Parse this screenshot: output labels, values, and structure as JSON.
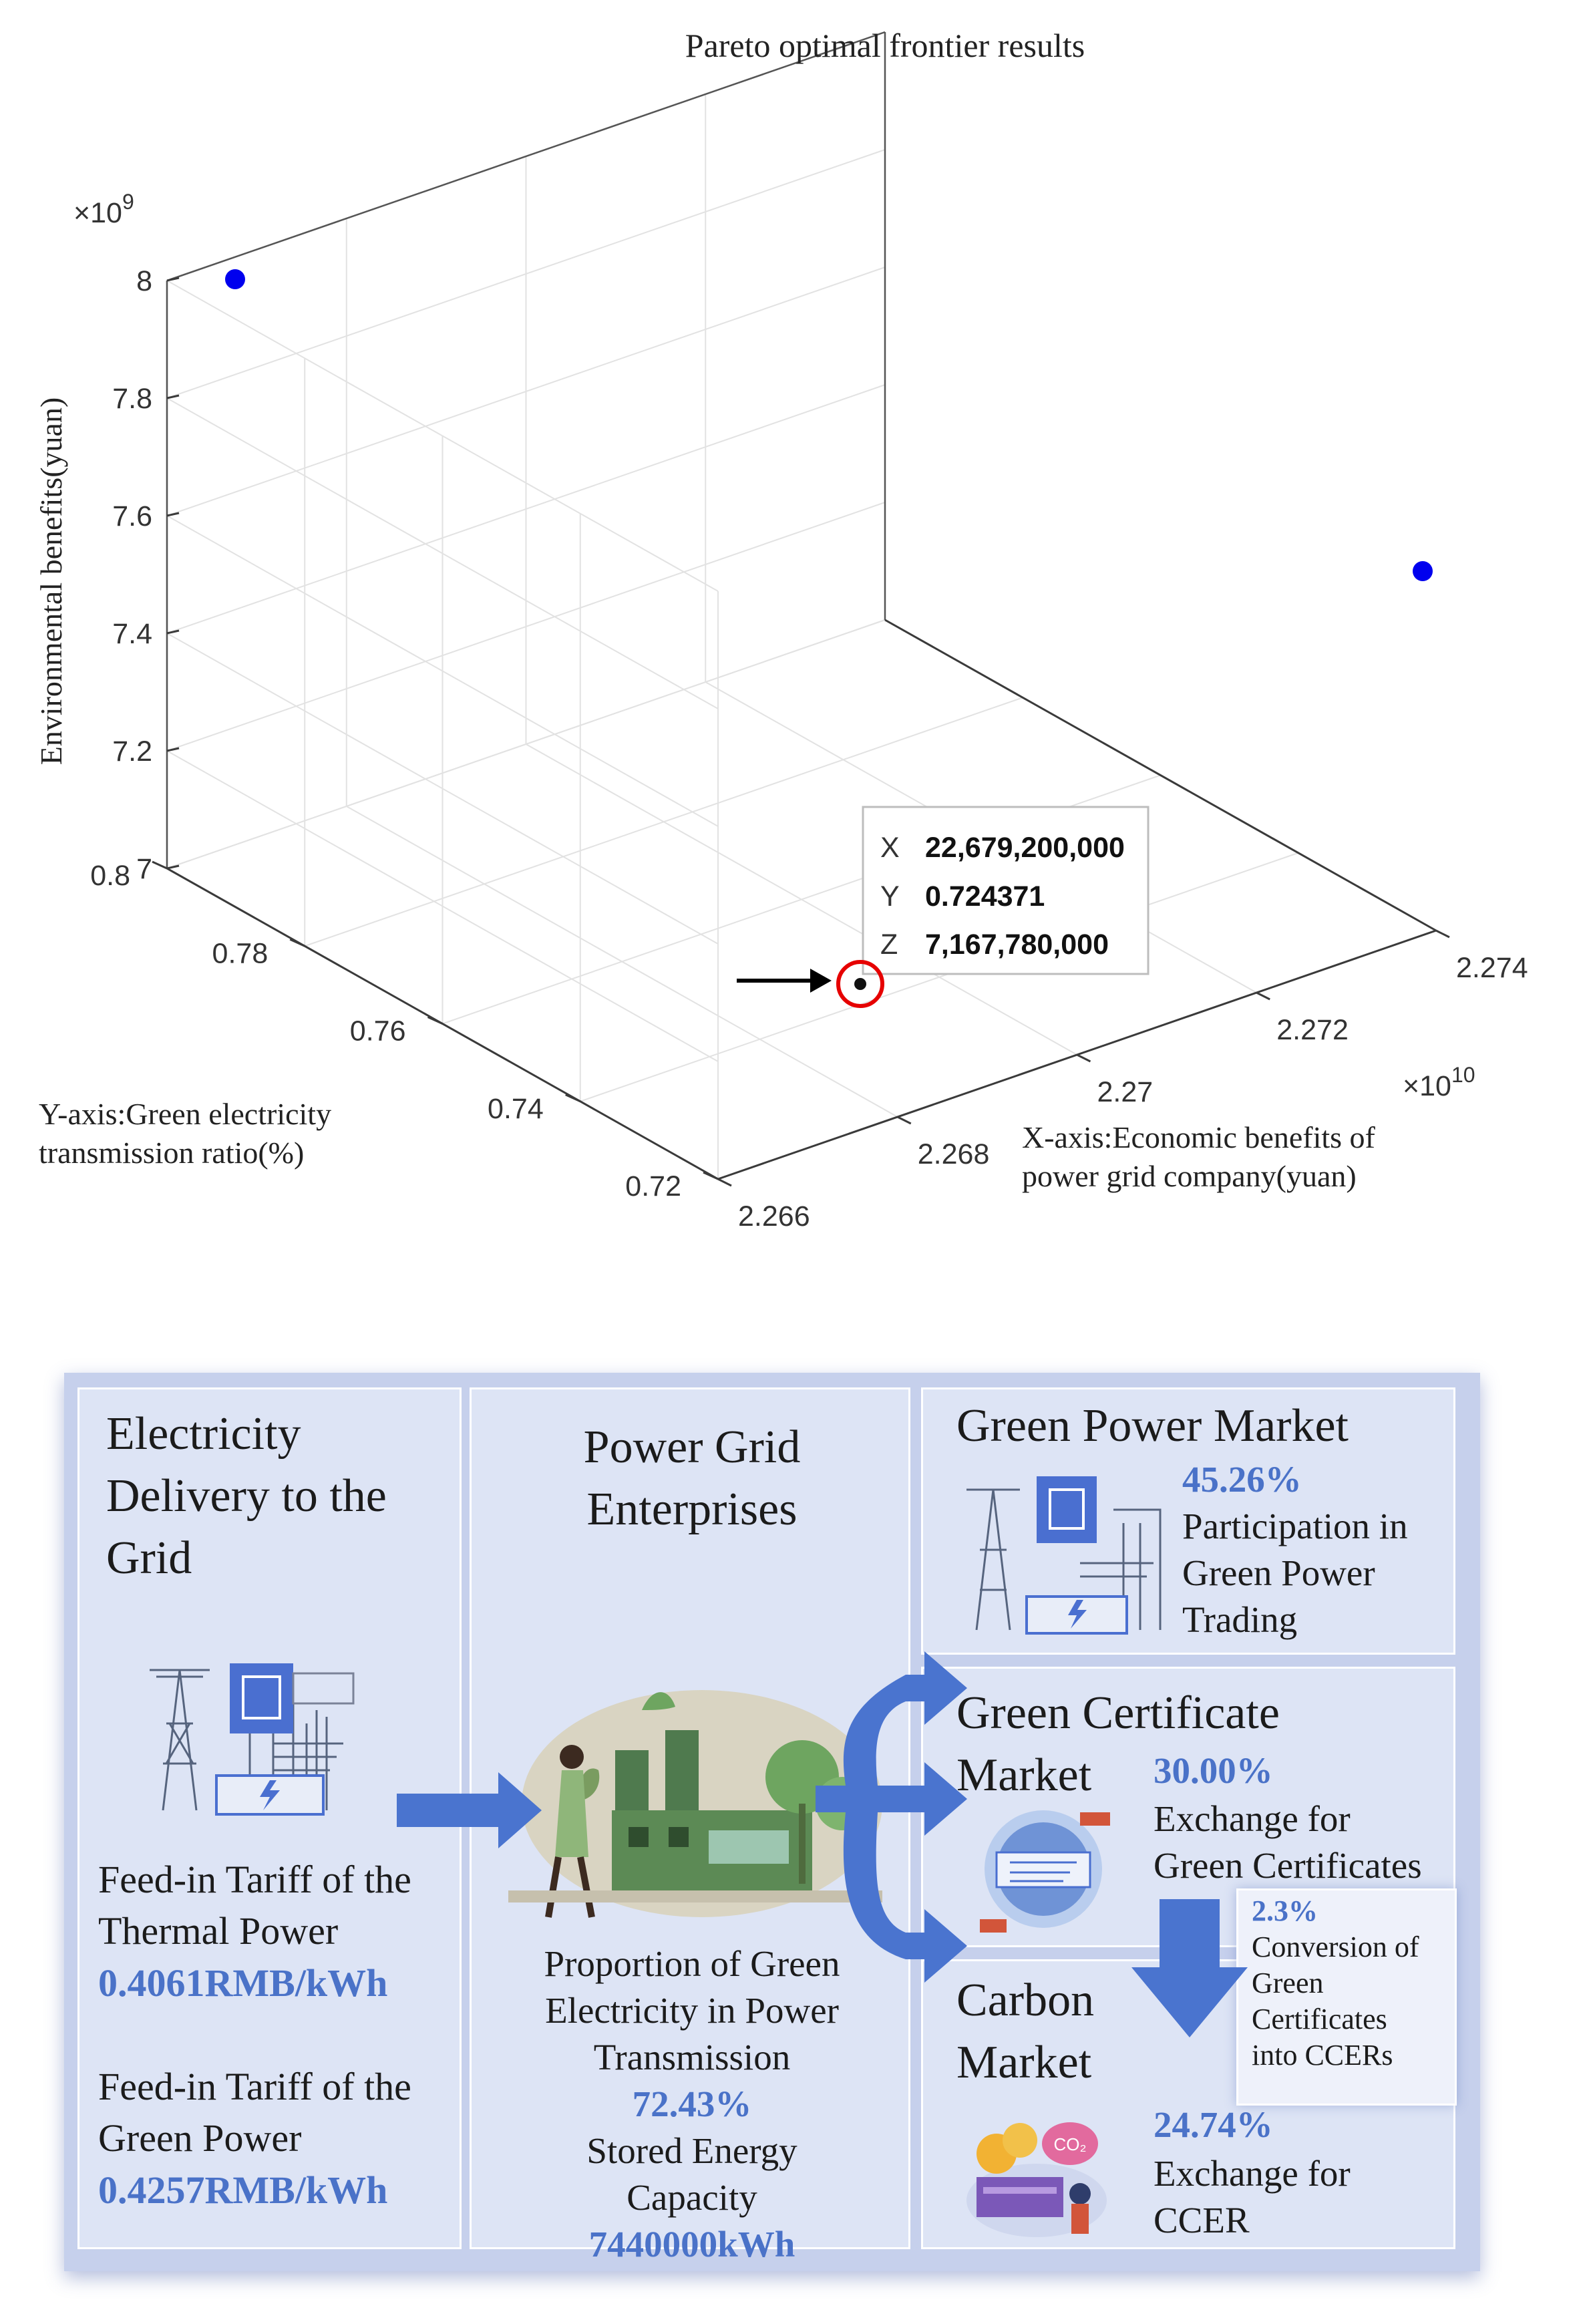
{
  "chart_data": {
    "type": "scatter",
    "title": "Pareto optimal frontier results",
    "xlabel": [
      "X-axis:Economic benefits of",
      "power grid company(yuan)"
    ],
    "ylabel": [
      "Y-axis:Green electricity",
      "transmission ratio(%)"
    ],
    "zlabel": "Environmental benefits(yuan)",
    "x_ticks": [
      "2.266",
      "2.268",
      "2.27",
      "2.272",
      "2.274"
    ],
    "x_exponent": "×10",
    "x_exponent_power": "10",
    "y_ticks": [
      "0.72",
      "0.74",
      "0.76",
      "0.78",
      "0.8"
    ],
    "z_ticks": [
      "7",
      "7.2",
      "7.4",
      "7.6",
      "7.8",
      "8"
    ],
    "z_exponent": "×10",
    "z_exponent_power": "9",
    "xlim": [
      22660000000,
      22740000000
    ],
    "ylim": [
      0.72,
      0.8
    ],
    "zlim": [
      7000000000,
      8000000000
    ],
    "grid": true,
    "points": [
      {
        "x": 22735000000,
        "y": 0.8,
        "z": 7998000000,
        "color": "#0000ee"
      },
      {
        "x": 22740000000,
        "y": 0.78,
        "z": 7470000000,
        "color": "#0000ee"
      },
      {
        "x": 22679200000,
        "y": 0.724371,
        "z": 7167780000,
        "color": "#111111",
        "highlighted": true
      }
    ],
    "datatip": [
      {
        "key": "X",
        "value": "22,679,200,000"
      },
      {
        "key": "Y",
        "value": "0.724371"
      },
      {
        "key": "Z",
        "value": "7,167,780,000"
      }
    ]
  },
  "diagram": {
    "delivery": {
      "title": [
        "Electricity",
        "Delivery to the",
        "Grid"
      ],
      "thermal_label": [
        "Feed-in Tariff of the",
        "Thermal Power"
      ],
      "thermal_value": "0.4061RMB/kWh",
      "green_label": [
        "Feed-in Tariff of the",
        "Green Power"
      ],
      "green_value": "0.4257RMB/kWh"
    },
    "enterprises": {
      "title": [
        "Power Grid",
        "Enterprises"
      ],
      "proportion_label": [
        "Proportion of Green",
        "Electricity in Power",
        "Transmission"
      ],
      "proportion_value": "72.43%",
      "storage_label": [
        "Stored Energy",
        "Capacity"
      ],
      "storage_value": "7440000kWh"
    },
    "green_power": {
      "title": "Green Power Market",
      "value": "45.26%",
      "desc": [
        "Participation in",
        "Green Power",
        "Trading"
      ]
    },
    "green_certificate": {
      "title": [
        "Green Certificate",
        "Market"
      ],
      "value": "30.00%",
      "desc": [
        "Exchange for",
        "Green Certificates"
      ]
    },
    "conversion": {
      "value": "2.3%",
      "desc": [
        "Conversion of",
        "Green",
        "Certificates",
        "into CCERs"
      ]
    },
    "carbon": {
      "title": [
        "Carbon",
        "Market"
      ],
      "value": "24.74%",
      "desc": [
        "Exchange for",
        "CCER"
      ]
    },
    "colors": {
      "accent": "#4a72c8",
      "arrow": "#4a74cf",
      "panel": "#c6d0ec",
      "box": "#dde4f5"
    },
    "icons": [
      "power-plant-icon",
      "factory-icon",
      "globe-certificate-icon",
      "coins-icon"
    ]
  }
}
